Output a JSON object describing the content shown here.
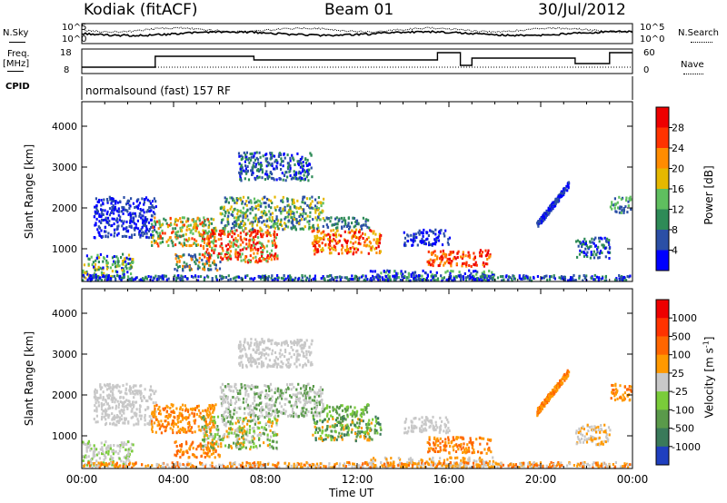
{
  "header": {
    "station": "Kodiak (fitACF)",
    "beam": "Beam 01",
    "date": "30/Jul/2012"
  },
  "top_panels": {
    "nsky_label": "N.Sky",
    "nsky_ticks": [
      "10^5",
      "10^0"
    ],
    "nsearch_label": "N.Search",
    "nsearch_ticks": [
      "10^5",
      "10^0"
    ],
    "freq_label": "Freq.",
    "freq_unit": "[MHz]",
    "freq_ticks": [
      "18",
      "8"
    ],
    "nave_label": "Nave",
    "nave_ticks": [
      "60",
      "0"
    ],
    "cpid_label": "CPID",
    "cpid_text": "normalsound (fast) 157 RF"
  },
  "chart_data": [
    {
      "type": "heatmap",
      "name": "power",
      "ylabel": "Slant Range [km]",
      "xlabel": "",
      "yticks": [
        "1000",
        "2000",
        "3000",
        "4000"
      ],
      "ylim": [
        200,
        4600
      ],
      "xlim": [
        0,
        24
      ],
      "colorbar": {
        "label": "Power [dB]",
        "ticks": [
          "4",
          "8",
          "12",
          "16",
          "20",
          "24",
          "28"
        ],
        "colors": [
          "#0000ff",
          "#2b4fa6",
          "#2e8b57",
          "#5fbf5f",
          "#e6b800",
          "#ff8c00",
          "#ff3300",
          "#ee0000"
        ]
      }
    },
    {
      "type": "heatmap",
      "name": "velocity",
      "ylabel": "Slant Range [km]",
      "xlabel": "Time UT",
      "yticks": [
        "1000",
        "2000",
        "3000",
        "4000"
      ],
      "xticks": [
        "00:00",
        "04:00",
        "08:00",
        "12:00",
        "16:00",
        "20:00",
        "00:00"
      ],
      "ylim": [
        200,
        4600
      ],
      "xlim": [
        0,
        24
      ],
      "colorbar": {
        "label": "Velocity [m s",
        "label_sup": "-1",
        "label_end": "]",
        "ticks": [
          "1000",
          "500",
          "100",
          "25",
          "-25",
          "-100",
          "-500",
          "-1000"
        ],
        "colors": [
          "#1f3fbf",
          "#3a7a5a",
          "#5a9a4a",
          "#7acc3a",
          "#c8c8c8",
          "#ff9900",
          "#ff6600",
          "#ff3300",
          "#ee0000"
        ]
      }
    }
  ]
}
